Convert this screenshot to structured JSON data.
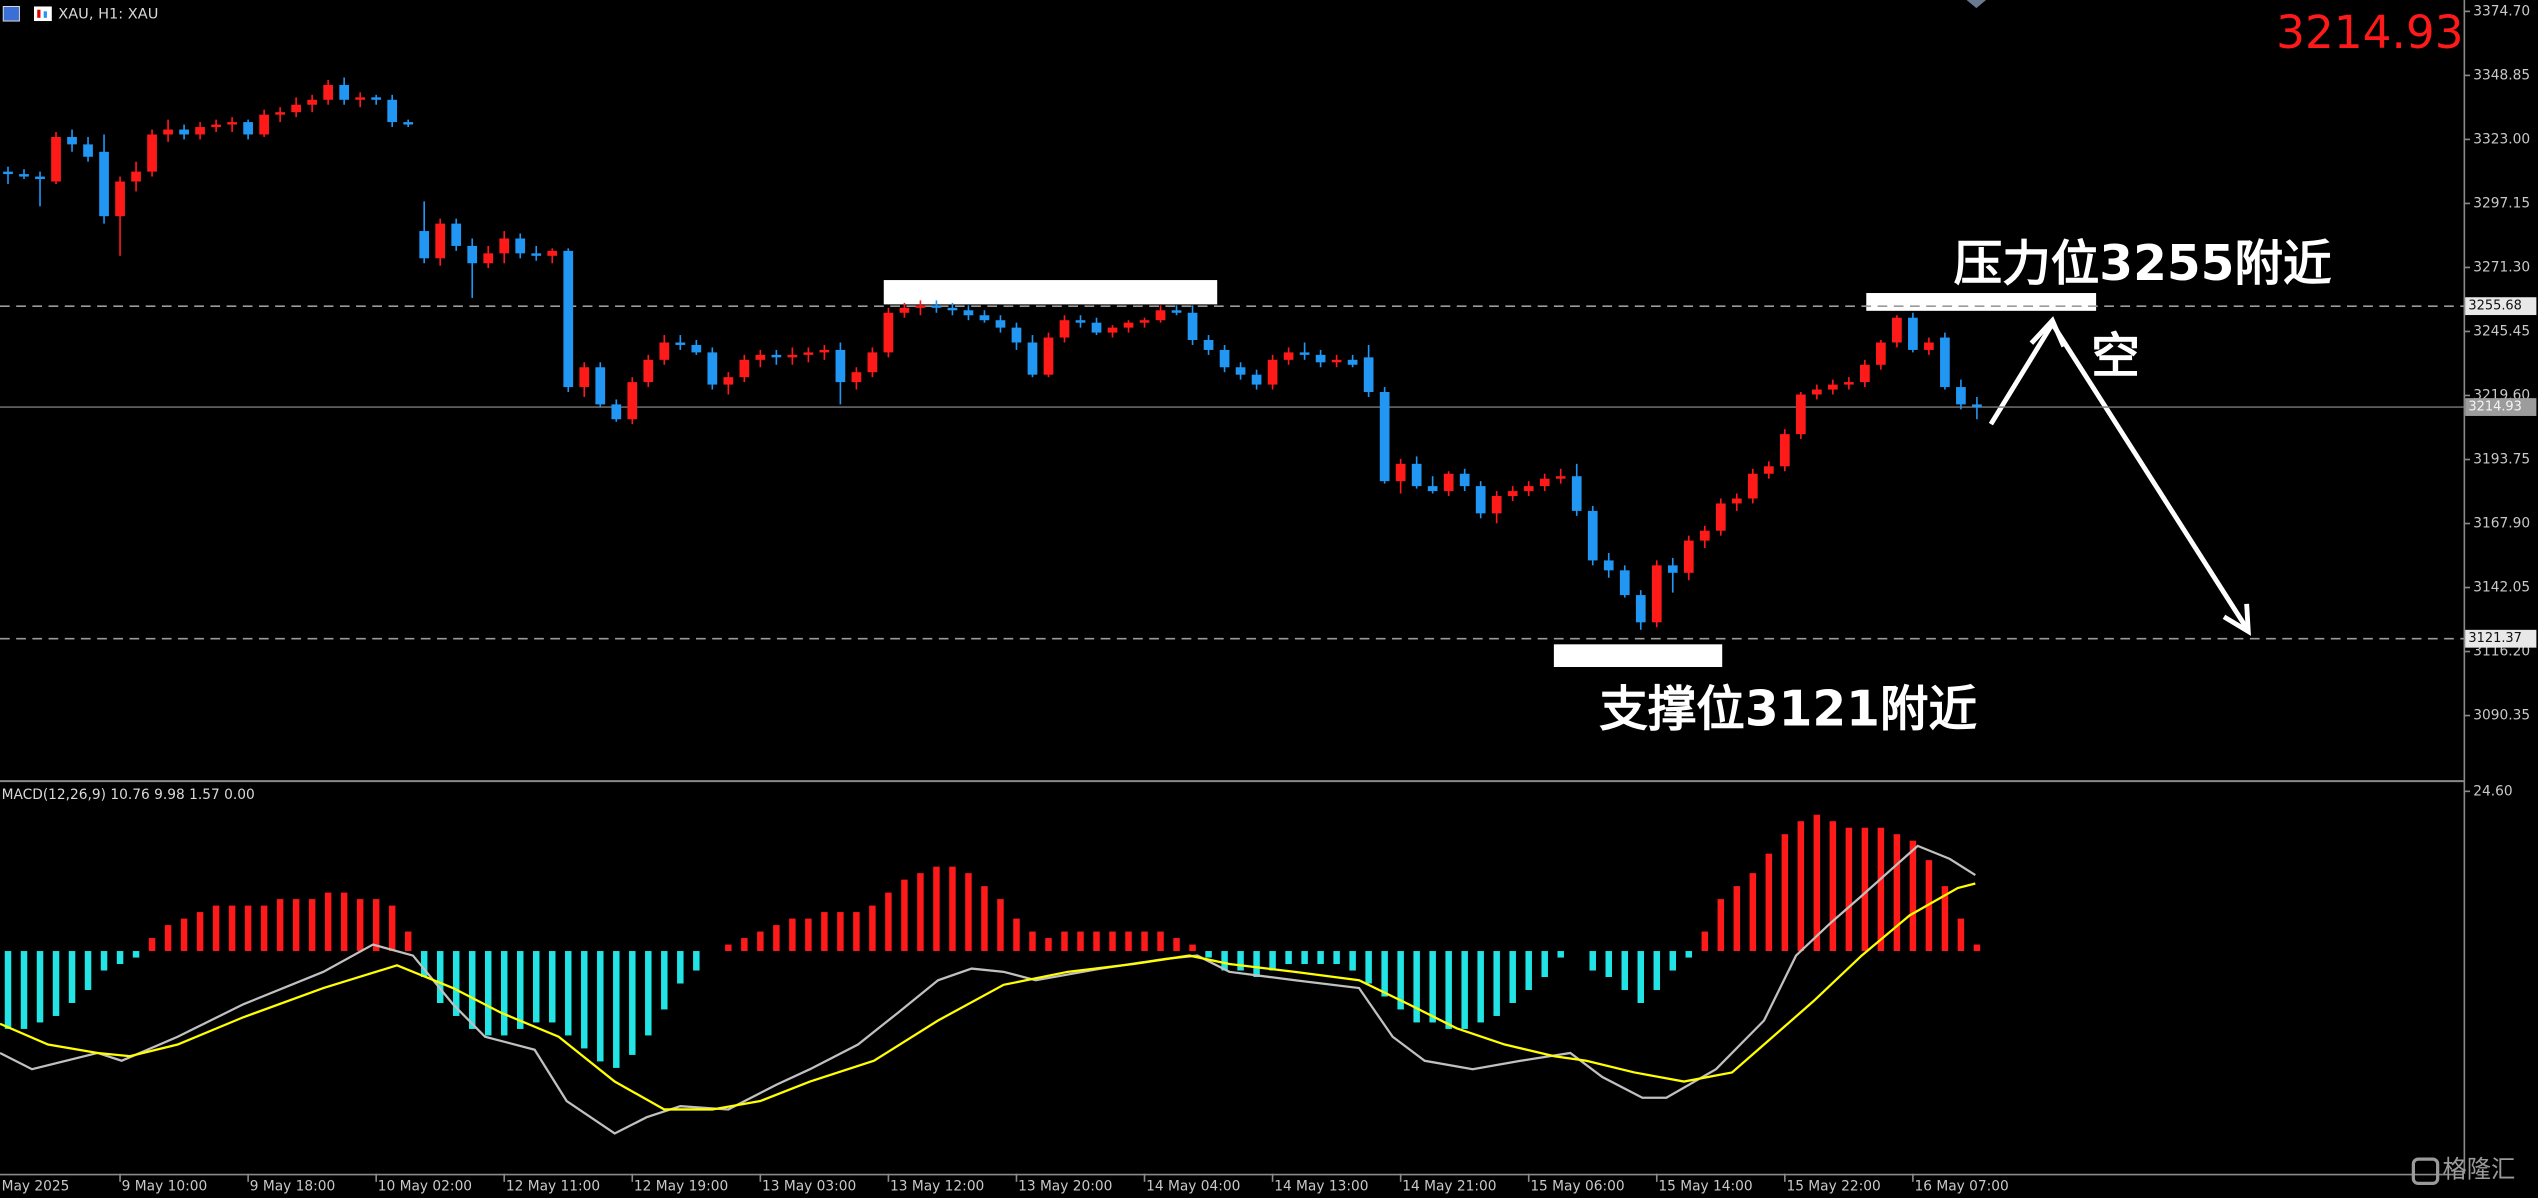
{
  "chart_data": [
    {
      "type": "candlestick",
      "title": "XAU, H1: XAU",
      "open": [
        3310,
        3309,
        3308,
        3306,
        3324,
        3321,
        3318,
        3292,
        3306,
        3310,
        3325,
        3327,
        3325,
        3328,
        3329,
        3330,
        3325,
        3333,
        3334,
        3337,
        3339,
        3345,
        3339,
        3340,
        3339,
        3330,
        3286,
        3275,
        3289,
        3280,
        3273,
        3277,
        3283,
        3277,
        3276,
        3278,
        3223,
        3231,
        3216,
        3210,
        3225,
        3234,
        3241,
        3240,
        3237,
        3224,
        3227,
        3234,
        3236,
        3235,
        3236,
        3237,
        3238,
        3225,
        3229,
        3237,
        3253,
        3255,
        3256,
        3255,
        3254,
        3252,
        3250,
        3247,
        3241,
        3228,
        3243,
        3250,
        3249,
        3245,
        3247,
        3249,
        3250,
        3254,
        3253,
        3242,
        3238,
        3231,
        3228,
        3224,
        3234,
        3237,
        3236,
        3233,
        3234,
        3235,
        3221,
        3185,
        3192,
        3183,
        3181,
        3188,
        3183,
        3172,
        3179,
        3181,
        3183,
        3186,
        3187,
        3173,
        3153,
        3149,
        3139,
        3128,
        3151,
        3148,
        3161,
        3165,
        3176,
        3178,
        3188,
        3191,
        3204,
        3220,
        3222,
        3224,
        3225,
        3232,
        3241,
        3251,
        3238,
        3243,
        3223,
        3216
      ],
      "high": [
        3312,
        3311,
        3310,
        3326,
        3327,
        3324,
        3325,
        3308,
        3314,
        3327,
        3331,
        3329,
        3330,
        3331,
        3332,
        3331,
        3335,
        3336,
        3340,
        3341,
        3347,
        3348,
        3342,
        3341,
        3341,
        3331,
        3298,
        3291,
        3291,
        3283,
        3280,
        3286,
        3285,
        3280,
        3279,
        3279,
        3233,
        3233,
        3218,
        3227,
        3236,
        3244,
        3244,
        3242,
        3239,
        3229,
        3236,
        3238,
        3238,
        3239,
        3239,
        3240,
        3241,
        3231,
        3239,
        3255,
        3257,
        3258,
        3258,
        3257,
        3256,
        3254,
        3252,
        3249,
        3244,
        3245,
        3252,
        3252,
        3251,
        3248,
        3250,
        3251,
        3256,
        3256,
        3256,
        3244,
        3240,
        3233,
        3230,
        3236,
        3239,
        3241,
        3238,
        3236,
        3236,
        3240,
        3223,
        3194,
        3195,
        3187,
        3189,
        3190,
        3185,
        3181,
        3183,
        3185,
        3188,
        3190,
        3192,
        3175,
        3156,
        3151,
        3141,
        3153,
        3154,
        3163,
        3167,
        3178,
        3180,
        3190,
        3193,
        3206,
        3221,
        3224,
        3226,
        3227,
        3234,
        3242,
        3252,
        3253,
        3243,
        3245,
        3226,
        3219
      ],
      "low": [
        3305,
        3307,
        3296,
        3305,
        3318,
        3314,
        3289,
        3276,
        3302,
        3308,
        3322,
        3323,
        3323,
        3326,
        3326,
        3323,
        3324,
        3330,
        3332,
        3334,
        3337,
        3337,
        3336,
        3337,
        3328,
        3328,
        3273,
        3272,
        3278,
        3259,
        3271,
        3273,
        3275,
        3274,
        3273,
        3221,
        3219,
        3215,
        3209,
        3208,
        3223,
        3232,
        3238,
        3236,
        3222,
        3220,
        3225,
        3231,
        3232,
        3232,
        3233,
        3234,
        3216,
        3222,
        3227,
        3235,
        3251,
        3252,
        3253,
        3252,
        3250,
        3249,
        3245,
        3238,
        3227,
        3227,
        3241,
        3247,
        3244,
        3243,
        3245,
        3247,
        3249,
        3252,
        3240,
        3236,
        3229,
        3226,
        3222,
        3222,
        3232,
        3234,
        3231,
        3231,
        3231,
        3219,
        3184,
        3180,
        3182,
        3180,
        3179,
        3181,
        3170,
        3168,
        3177,
        3179,
        3181,
        3184,
        3171,
        3151,
        3146,
        3138,
        3125,
        3126,
        3140,
        3145,
        3158,
        3163,
        3173,
        3176,
        3186,
        3189,
        3202,
        3218,
        3220,
        3222,
        3223,
        3230,
        3239,
        3237,
        3236,
        3222,
        3214,
        3210
      ],
      "close": [
        3309,
        3308,
        3307,
        3324,
        3321,
        3316,
        3292,
        3306,
        3310,
        3325,
        3327,
        3325,
        3328,
        3329,
        3330,
        3325,
        3333,
        3334,
        3337,
        3339,
        3345,
        3339,
        3340,
        3339,
        3330,
        3329,
        3275,
        3289,
        3280,
        3273,
        3277,
        3283,
        3277,
        3276,
        3278,
        3223,
        3231,
        3216,
        3210,
        3225,
        3234,
        3241,
        3240,
        3237,
        3224,
        3227,
        3234,
        3236,
        3235,
        3236,
        3237,
        3238,
        3225,
        3229,
        3237,
        3253,
        3255,
        3256,
        3255,
        3254,
        3252,
        3250,
        3247,
        3241,
        3228,
        3243,
        3250,
        3249,
        3245,
        3247,
        3249,
        3250,
        3254,
        3253,
        3242,
        3238,
        3231,
        3228,
        3224,
        3234,
        3237,
        3236,
        3233,
        3234,
        3232,
        3221,
        3185,
        3192,
        3183,
        3181,
        3188,
        3183,
        3172,
        3179,
        3181,
        3183,
        3186,
        3187,
        3173,
        3153,
        3149,
        3139,
        3128,
        3151,
        3148,
        3161,
        3165,
        3176,
        3178,
        3188,
        3191,
        3204,
        3220,
        3222,
        3224,
        3225,
        3232,
        3241,
        3251,
        3238,
        3241,
        3223,
        3216,
        3214.93
      ],
      "up_color": "#ff1a1a",
      "down_color": "#2196f3",
      "xlim": [
        -0.5,
        153.4
      ],
      "xticks": [
        {
          "value": -1,
          "label": "May 2025"
        },
        {
          "value": 7,
          "label": "9 May 10:00"
        },
        {
          "value": 15,
          "label": "9 May 18:00"
        },
        {
          "value": 23,
          "label": "10 May 02:00"
        },
        {
          "value": 31,
          "label": "12 May 11:00"
        },
        {
          "value": 39,
          "label": "12 May 19:00"
        },
        {
          "value": 47,
          "label": "13 May 03:00"
        },
        {
          "value": 55,
          "label": "13 May 12:00"
        },
        {
          "value": 63,
          "label": "13 May 20:00"
        },
        {
          "value": 71,
          "label": "14 May 04:00"
        },
        {
          "value": 79,
          "label": "14 May 13:00"
        },
        {
          "value": 87,
          "label": "14 May 21:00"
        },
        {
          "value": 95,
          "label": "15 May 06:00"
        },
        {
          "value": 103,
          "label": "15 May 14:00"
        },
        {
          "value": 111,
          "label": "15 May 22:00"
        },
        {
          "value": 119,
          "label": "16 May 07:00"
        }
      ],
      "ylim": [
        3064.2,
        3379.3
      ],
      "yticks": [
        {
          "value": 3374.7,
          "label": "3374.70"
        },
        {
          "value": 3348.85,
          "label": "3348.85"
        },
        {
          "value": 3323,
          "label": "3323.00"
        },
        {
          "value": 3297.15,
          "label": "3297.15"
        },
        {
          "value": 3271.3,
          "label": "3271.30"
        },
        {
          "value": 3245.45,
          "label": "3245.45"
        },
        {
          "value": 3219.6,
          "label": "3219.60"
        },
        {
          "value": 3193.75,
          "label": "3193.75"
        },
        {
          "value": 3167.9,
          "label": "3167.90"
        },
        {
          "value": 3142.05,
          "label": "3142.05"
        },
        {
          "value": 3116.2,
          "label": "3116.20"
        },
        {
          "value": 3090.35,
          "label": "3090.35"
        }
      ],
      "last_price": 3214.93,
      "levels": [
        3255.68,
        3121.37
      ],
      "annotations": [
        "压力位3255附近",
        "空",
        "支撑位3121附近"
      ]
    },
    {
      "type": "macd",
      "title": "MACD(12,26,9) 10.76 9.98 1.57 0.00",
      "histogram": {
        "values": [
          -12,
          -12,
          -11,
          -10,
          -8,
          -6,
          -3,
          -2,
          -1,
          2,
          4,
          5,
          6,
          7,
          7,
          7,
          7,
          8,
          8,
          8,
          9,
          9,
          8,
          8,
          7,
          3,
          -4,
          -8,
          -10,
          -12,
          -13,
          -13,
          -12,
          -11,
          -11,
          -13,
          -15,
          -17,
          -18,
          -16,
          -13,
          -9,
          -5,
          -3,
          0,
          1,
          2,
          3,
          4,
          5,
          5,
          6,
          6,
          6,
          7,
          9,
          11,
          12,
          13,
          13,
          12,
          10,
          8,
          5,
          3,
          2,
          3,
          3,
          3,
          3,
          3,
          3,
          3,
          2,
          1,
          -1,
          -3,
          -3,
          -4,
          -3,
          -2,
          -2,
          -2,
          -2,
          -3,
          -5,
          -7,
          -9,
          -11,
          -11,
          -12,
          -12,
          -11,
          -10,
          -8,
          -6,
          -4,
          -1,
          0,
          -3,
          -4,
          -6,
          -8,
          -6,
          -3,
          -1,
          3,
          8,
          10,
          12,
          15,
          18,
          20,
          21,
          20,
          19,
          19,
          19,
          18,
          17,
          14,
          10,
          5,
          1
        ],
        "up_color": "#ff1a1a",
        "down_color": "#22e4e4"
      },
      "series": [
        {
          "color": "#c0c0c0",
          "x": [
            -0.5,
            1.5,
            5.6,
            7.1,
            10.6,
            14.7,
            19.7,
            22.8,
            25.3,
            27.8,
            29.8,
            32.9,
            34.9,
            37.9,
            39.9,
            42.0,
            45.0,
            48.0,
            50.1,
            53.1,
            55.6,
            58.1,
            60.2,
            62.2,
            64.2,
            68.3,
            72.3,
            74.3,
            76.3,
            80.4,
            84.4,
            86.5,
            88.5,
            91.5,
            94.5,
            97.6,
            99.6,
            102.1,
            103.6,
            106.7,
            109.7,
            111.7,
            113.8,
            115.8,
            117.8,
            119.3,
            121.3,
            122.9
          ],
          "values": [
            -15.7,
            -18.2,
            -15.7,
            -16.9,
            -13.2,
            -8.2,
            -3.2,
            1.0,
            -0.7,
            -8.2,
            -13.2,
            -15.2,
            -23.1,
            -28.1,
            -25.6,
            -23.9,
            -24.4,
            -20.6,
            -18.2,
            -14.4,
            -9.5,
            -4.5,
            -2.7,
            -3.2,
            -4.5,
            -2.7,
            -1.2,
            -0.7,
            -3.2,
            -4.5,
            -5.7,
            -13.2,
            -16.9,
            -18.2,
            -16.9,
            -15.7,
            -19.4,
            -22.6,
            -22.6,
            -18.2,
            -10.7,
            -0.7,
            4.2,
            8.5,
            12.9,
            16.2,
            14.2,
            11.7
          ]
        },
        {
          "color": "#ffff00",
          "x": [
            -0.5,
            2.5,
            5.6,
            7.6,
            10.6,
            14.7,
            19.7,
            24.3,
            27.8,
            30.8,
            34.4,
            37.9,
            41.0,
            44.0,
            47.0,
            50.1,
            54.1,
            58.1,
            62.2,
            66.2,
            70.3,
            73.8,
            76.3,
            80.4,
            84.4,
            87.5,
            90.5,
            93.5,
            96.6,
            98.6,
            101.6,
            104.7,
            107.7,
            109.7,
            112.8,
            115.8,
            118.8,
            121.8,
            122.9
          ],
          "values": [
            -11.2,
            -14.4,
            -15.7,
            -16.2,
            -14.4,
            -10.2,
            -5.7,
            -2.2,
            -5.7,
            -9.5,
            -13.2,
            -20.1,
            -24.4,
            -24.4,
            -23.1,
            -20.1,
            -16.9,
            -10.7,
            -5.2,
            -3.2,
            -2.0,
            -0.7,
            -2.0,
            -3.2,
            -4.5,
            -8.2,
            -11.9,
            -14.4,
            -16.2,
            -16.9,
            -18.7,
            -20.1,
            -18.7,
            -14.4,
            -7.7,
            -0.7,
            5.5,
            9.7,
            10.4
          ]
        }
      ],
      "xlim": [
        -0.5,
        153.4
      ],
      "ylim": [
        -34.3,
        25.8
      ],
      "yticks": [
        {
          "value": 24.6,
          "label": "24.60"
        }
      ]
    }
  ],
  "watermark": "格隆汇"
}
